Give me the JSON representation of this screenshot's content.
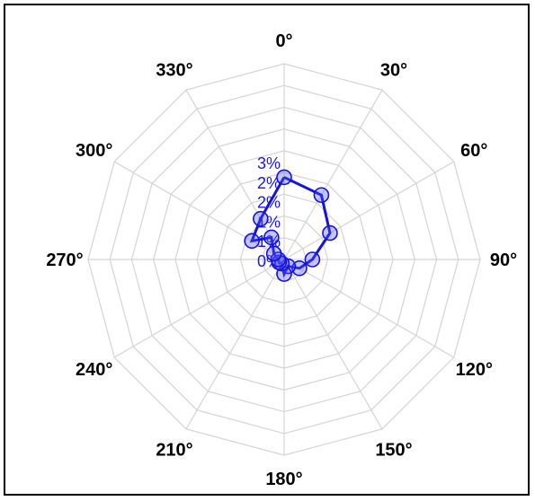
{
  "chart_data": {
    "type": "radar",
    "angles_deg": [
      0,
      30,
      60,
      90,
      120,
      150,
      180,
      210,
      240,
      270,
      300,
      330
    ],
    "angle_labels": [
      "0°",
      "30°",
      "60°",
      "90°",
      "120°",
      "150°",
      "180°",
      "210°",
      "240°",
      "270°",
      "300°",
      "330°"
    ],
    "radial_tick_labels": [
      "0%",
      "1%",
      "1%",
      "2%",
      "2%",
      "3%"
    ],
    "radial_ticks": [
      0,
      0.5,
      1.0,
      1.5,
      2.0,
      2.5
    ],
    "radial_max": 5.0,
    "grid": true,
    "series": [
      {
        "color": "#1212e0",
        "points": [
          {
            "angle": 0,
            "value": 2.1
          },
          {
            "angle": 30,
            "value": 1.9
          },
          {
            "angle": 60,
            "value": 1.35
          },
          {
            "angle": 90,
            "value": 0.72
          },
          {
            "angle": 120,
            "value": 0.45
          },
          {
            "angle": 150,
            "value": 0.2
          },
          {
            "angle": 180,
            "value": 0.37
          },
          {
            "angle": 210,
            "value": 0.12
          },
          {
            "angle": 240,
            "value": 0.15
          },
          {
            "angle": 270,
            "value": 0.15
          },
          {
            "angle": 300,
            "value": 0.3
          },
          {
            "angle": 330,
            "value": 0.65
          },
          {
            "angle": 300,
            "value": 0.95
          },
          {
            "angle": 330,
            "value": 1.2
          },
          {
            "angle": 0,
            "value": 2.1
          }
        ]
      }
    ]
  }
}
